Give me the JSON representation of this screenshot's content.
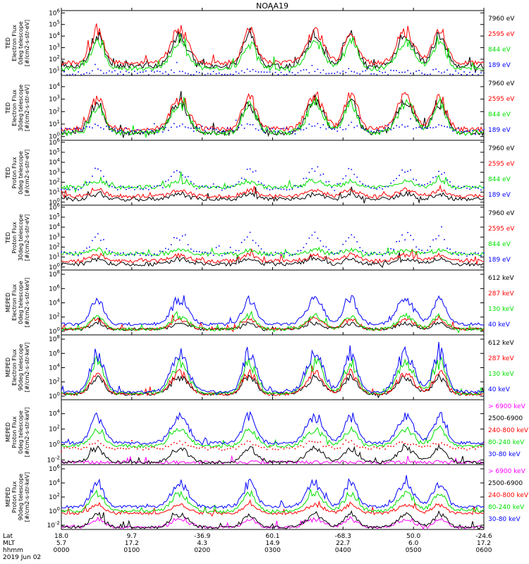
{
  "title": "NOAA19",
  "colors": {
    "black": "#000000",
    "red": "#ff0000",
    "green": "#00e000",
    "blue": "#0000ff",
    "magenta": "#ff00ff"
  },
  "chart_data": [
    {
      "type": "line",
      "ylabel": [
        "TED",
        "Electron Flux",
        "0deg telescope",
        "[#/cm2-s-str-eV]"
      ],
      "ylog": true,
      "ytick_exps": [
        1,
        2,
        3,
        4,
        5,
        6
      ],
      "ylim_exp": [
        0.6,
        6.2
      ],
      "series": [
        {
          "name": "7960 eV",
          "color": "black",
          "base": 1.4,
          "scatter": false
        },
        {
          "name": "2595 eV",
          "color": "red",
          "base": 1.7,
          "scatter": false
        },
        {
          "name": "844 eV",
          "color": "green",
          "base": 1.2,
          "scatter": false
        },
        {
          "name": "189 eV",
          "color": "blue",
          "base": 0.8,
          "scatter": true
        }
      ]
    },
    {
      "type": "line",
      "ylabel": [
        "TED",
        "Electron Flux",
        "30deg telescope",
        "[#/cm2-s-str-eV]"
      ],
      "ylog": true,
      "ytick_exps": [
        0,
        1,
        2,
        3,
        4
      ],
      "ylim_exp": [
        -0.3,
        4.9
      ],
      "series": [
        {
          "name": "7960 eV",
          "color": "black",
          "base": 0.3,
          "scatter": false
        },
        {
          "name": "2595 eV",
          "color": "red",
          "base": 0.6,
          "scatter": false
        },
        {
          "name": "844 eV",
          "color": "green",
          "base": 0.3,
          "scatter": false
        },
        {
          "name": "189 eV",
          "color": "blue",
          "base": 0.5,
          "scatter": true
        }
      ]
    },
    {
      "type": "line",
      "ylabel": [
        "TED",
        "Proton Flux",
        "0deg telescope",
        "[#/cm2-s-str-eV]"
      ],
      "ylog": true,
      "ytick_exps": [
        0,
        1,
        2,
        3,
        4,
        5,
        6
      ],
      "ylim_exp": [
        -0.3,
        6.2
      ],
      "series": [
        {
          "name": "7960 eV",
          "color": "black",
          "base": 0.3,
          "scatter": false
        },
        {
          "name": "2595 eV",
          "color": "red",
          "base": 0.6,
          "scatter": false
        },
        {
          "name": "844 eV",
          "color": "green",
          "base": 1.5,
          "scatter": false
        },
        {
          "name": "189 eV",
          "color": "blue",
          "base": 1.4,
          "scatter": true
        }
      ]
    },
    {
      "type": "line",
      "ylabel": [
        "TED",
        "Proton Flux",
        "30deg telescope",
        "[#/cm2-s-str-eV]"
      ],
      "ylog": true,
      "ytick_exps": [
        0,
        1,
        2,
        3,
        4,
        5,
        6
      ],
      "ylim_exp": [
        -0.3,
        6.2
      ],
      "series": [
        {
          "name": "7960 eV",
          "color": "black",
          "base": 0.3,
          "scatter": false
        },
        {
          "name": "2595 eV",
          "color": "red",
          "base": 0.6,
          "scatter": false
        },
        {
          "name": "844 eV",
          "color": "green",
          "base": 1.3,
          "scatter": false
        },
        {
          "name": "189 eV",
          "color": "blue",
          "base": 1.3,
          "scatter": true
        }
      ]
    },
    {
      "type": "line",
      "ylabel": [
        "MEPED",
        "Electron Flux",
        "0deg telescope",
        "[#/cm2-s-str-keV]"
      ],
      "ylog": true,
      "ytick_exps": [
        0,
        2,
        4,
        6,
        8
      ],
      "ylim_exp": [
        -0.5,
        8.6
      ],
      "series": [
        {
          "name": "612 keV",
          "color": "black",
          "base": 0.3,
          "scatter": false
        },
        {
          "name": "287 keV",
          "color": "red",
          "base": 0.3,
          "scatter": false
        },
        {
          "name": "130 keV",
          "color": "green",
          "base": 0.3,
          "scatter": false
        },
        {
          "name": "40 keV",
          "color": "blue",
          "base": 1.0,
          "scatter": false
        }
      ]
    },
    {
      "type": "line",
      "ylabel": [
        "MEPED",
        "Electron Flux",
        "90deg telescope",
        "[#/cm2-s-str-keV]"
      ],
      "ylog": true,
      "ytick_exps": [
        0,
        2,
        4,
        6,
        8
      ],
      "ylim_exp": [
        -0.5,
        8.6
      ],
      "series": [
        {
          "name": "612 keV",
          "color": "black",
          "base": 0.3,
          "scatter": false
        },
        {
          "name": "287 keV",
          "color": "red",
          "base": 0.3,
          "scatter": false
        },
        {
          "name": "130 keV",
          "color": "green",
          "base": 0.4,
          "scatter": false
        },
        {
          "name": "40 keV",
          "color": "blue",
          "base": 0.6,
          "scatter": false
        }
      ]
    },
    {
      "type": "line",
      "ylabel": [
        "MEPED",
        "Proton Flux",
        "0deg telescope",
        "[#/cm2-s-str-keV]"
      ],
      "ylog": true,
      "ytick_exps": [
        -2,
        0,
        2,
        4
      ],
      "ylim_exp": [
        -2.6,
        5.8
      ],
      "series": [
        {
          "name": "> 6900 keV",
          "color": "magenta",
          "base": -2.3,
          "scatter": false
        },
        {
          "name": "2500-6900",
          "color": "black",
          "base": -2.3,
          "scatter": false
        },
        {
          "name": "240-800 keV",
          "color": "red",
          "base": -0.5,
          "scatter": true
        },
        {
          "name": "80-240 keV",
          "color": "green",
          "base": -0.2,
          "scatter": false
        },
        {
          "name": "30-80 keV",
          "color": "blue",
          "base": 0.2,
          "scatter": false
        }
      ]
    },
    {
      "type": "line",
      "ylabel": [
        "MEPED",
        "Proton Flux",
        "90deg telescope",
        "[#/cm2-s-str-keV]"
      ],
      "ylog": true,
      "ytick_exps": [
        -2,
        0,
        2,
        4,
        6
      ],
      "ylim_exp": [
        -2.6,
        6.6
      ],
      "series": [
        {
          "name": "> 6900 keV",
          "color": "magenta",
          "base": -2.3,
          "scatter": false
        },
        {
          "name": "2500-6900",
          "color": "black",
          "base": -2.3,
          "scatter": false
        },
        {
          "name": "240-800 keV",
          "color": "red",
          "base": -0.3,
          "scatter": false
        },
        {
          "name": "80-240 keV",
          "color": "green",
          "base": 0.0,
          "scatter": false
        },
        {
          "name": "30-80 keV",
          "color": "blue",
          "base": 0.6,
          "scatter": false
        }
      ]
    }
  ],
  "events": [
    0.085,
    0.28,
    0.445,
    0.6,
    0.685,
    0.815,
    0.895
  ],
  "x_axis": {
    "row_labels": [
      "Lat",
      "MLT",
      "hhmm",
      "2019 Jun 02"
    ],
    "lat": [
      "18.0",
      "9.7",
      "-36.9",
      "60.1",
      "-68.3",
      "50.0",
      "-24.6"
    ],
    "mlt": [
      "5.7",
      "17.2",
      "4.3",
      "14.9",
      "22.7",
      "6.0",
      "17.2"
    ],
    "hhmm": [
      "0000",
      "0100",
      "0200",
      "0300",
      "0400",
      "0500",
      "0600"
    ]
  }
}
